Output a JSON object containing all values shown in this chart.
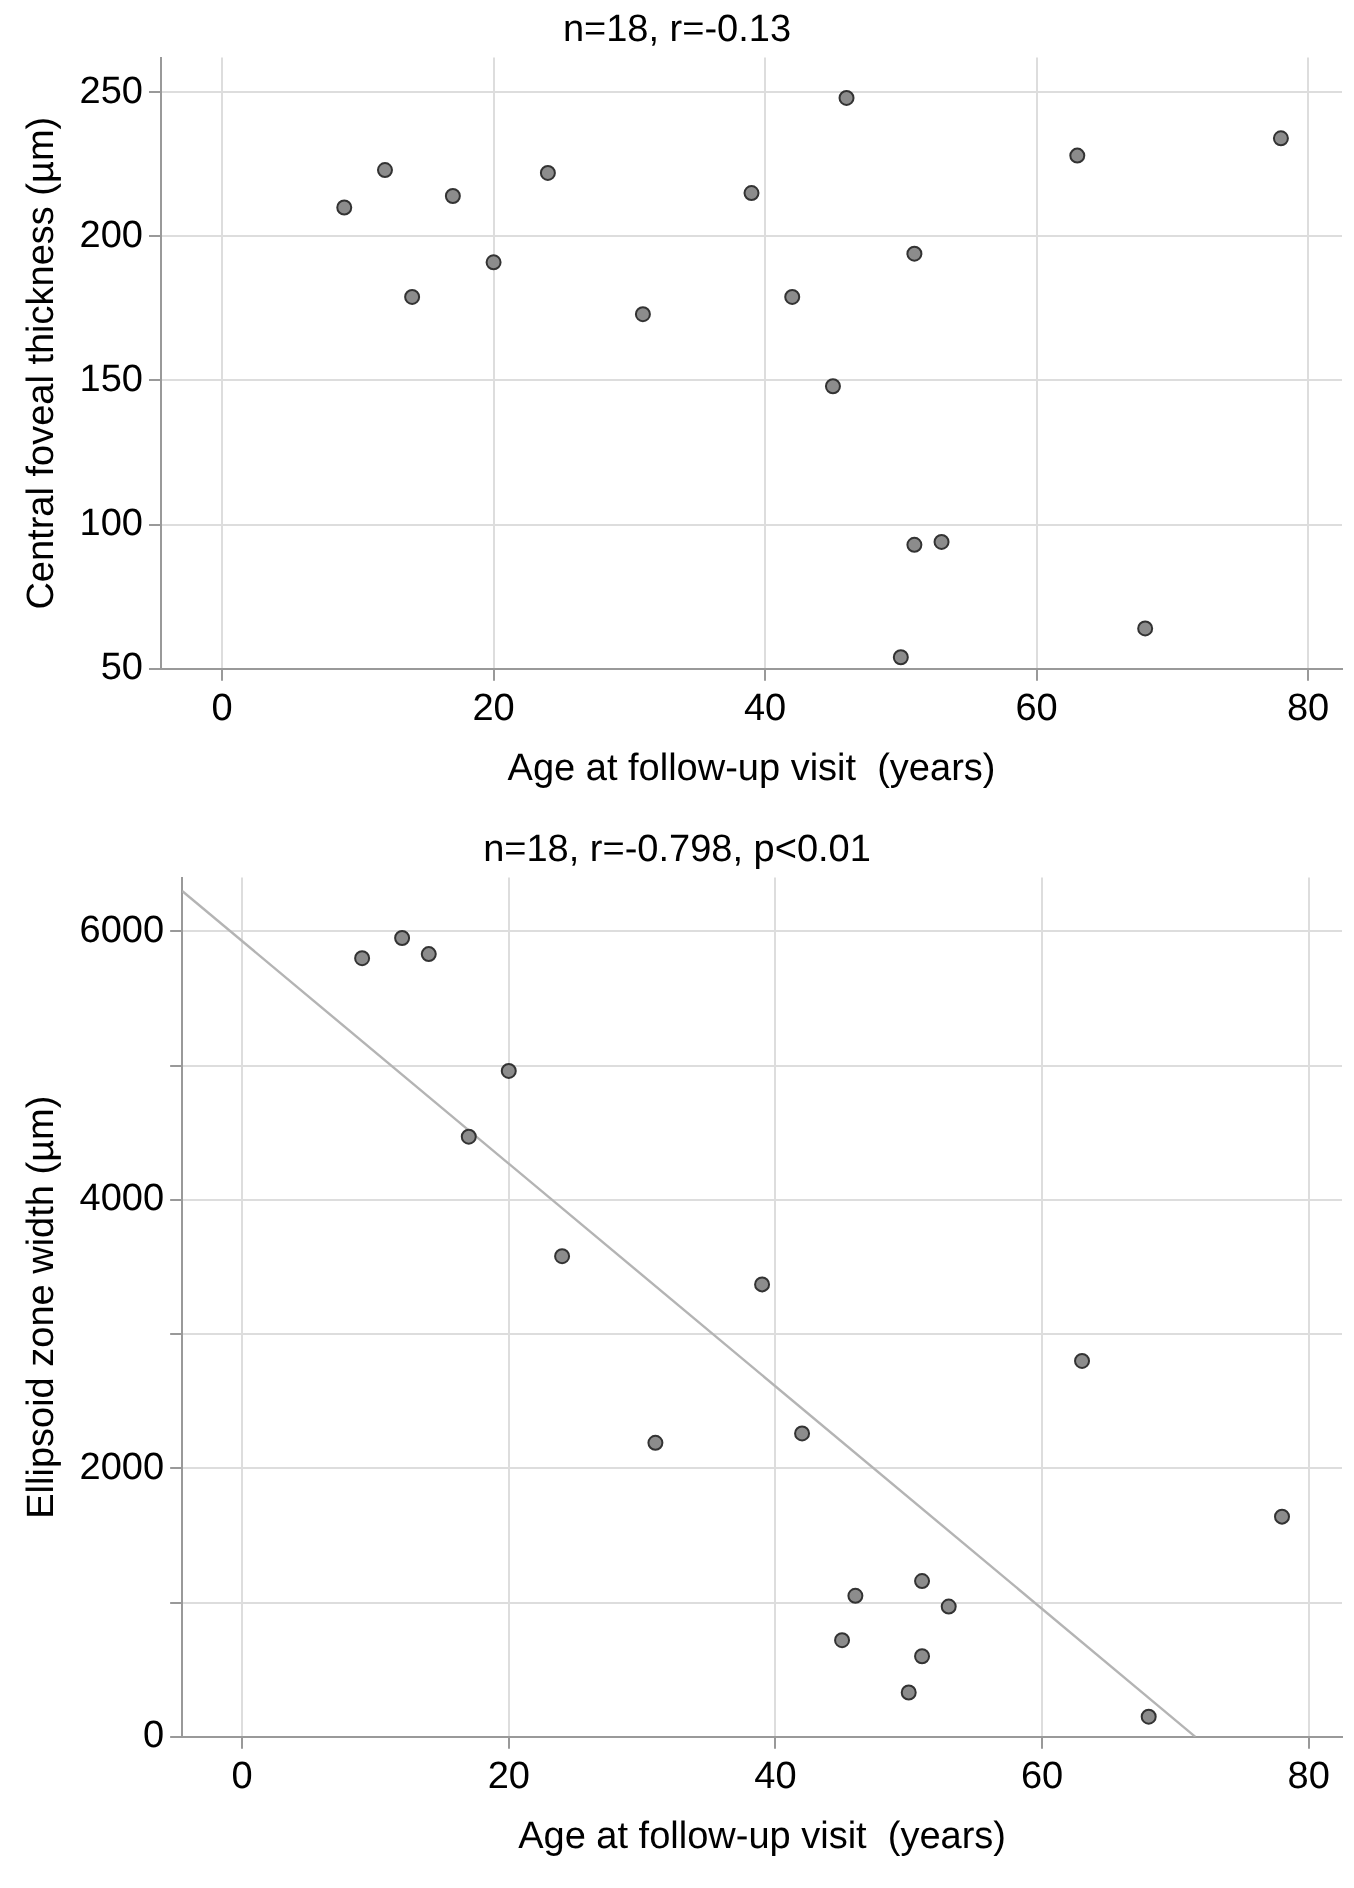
{
  "chart_data": [
    {
      "type": "scatter",
      "title": "n=18, r=-0.13",
      "xlabel": "Age at follow-up visit  (years)",
      "ylabel": "Central foveal thickness (µm)",
      "x": [
        9,
        12,
        14,
        17,
        20,
        24,
        31,
        39,
        42,
        45,
        46,
        51,
        51,
        53,
        50,
        63,
        68,
        78
      ],
      "series": [
        {
          "color": "#8c8c8c",
          "values": [
            210,
            223,
            179,
            214,
            191,
            222,
            173,
            215,
            179,
            148,
            248,
            194,
            93,
            94,
            54,
            228,
            64,
            234
          ]
        }
      ],
      "xlim": [
        -4.5,
        82.5
      ],
      "xticks": [
        0,
        20,
        40,
        60,
        80
      ],
      "ylim": [
        50,
        262
      ],
      "yticks": [
        50,
        100,
        150,
        200,
        250
      ],
      "grid": true,
      "marker": "circle"
    },
    {
      "type": "scatter",
      "title": "n=18, r=-0.798, p<0.01",
      "xlabel": "Age at follow-up visit  (years)",
      "ylabel": "Ellipsoid zone width (µm)",
      "x": [
        9,
        12,
        14,
        17,
        20,
        24,
        31,
        39,
        42,
        45,
        46,
        51,
        51,
        53,
        50,
        63,
        68,
        78
      ],
      "series": [
        {
          "color": "#8c8c8c",
          "values": [
            5800,
            5950,
            5830,
            4470,
            4960,
            3580,
            2190,
            3370,
            2260,
            720,
            1050,
            1160,
            600,
            970,
            330,
            2800,
            150,
            1640
          ]
        },
        {
          "type": "line",
          "marker": "none",
          "color": "#b4b4b4",
          "x": [
            -4.5,
            71.5
          ],
          "values": [
            6300,
            0
          ]
        }
      ],
      "xlim": [
        -4.5,
        82.5
      ],
      "xticks": [
        0,
        20,
        40,
        60,
        80
      ],
      "ylim": [
        0,
        6400
      ],
      "yticks": [
        0,
        {
          "value": 1000,
          "label": null
        },
        2000,
        {
          "value": 3000,
          "label": null
        },
        4000,
        {
          "value": 5000,
          "label": null
        },
        6000
      ],
      "grid": true,
      "marker": "circle"
    }
  ]
}
